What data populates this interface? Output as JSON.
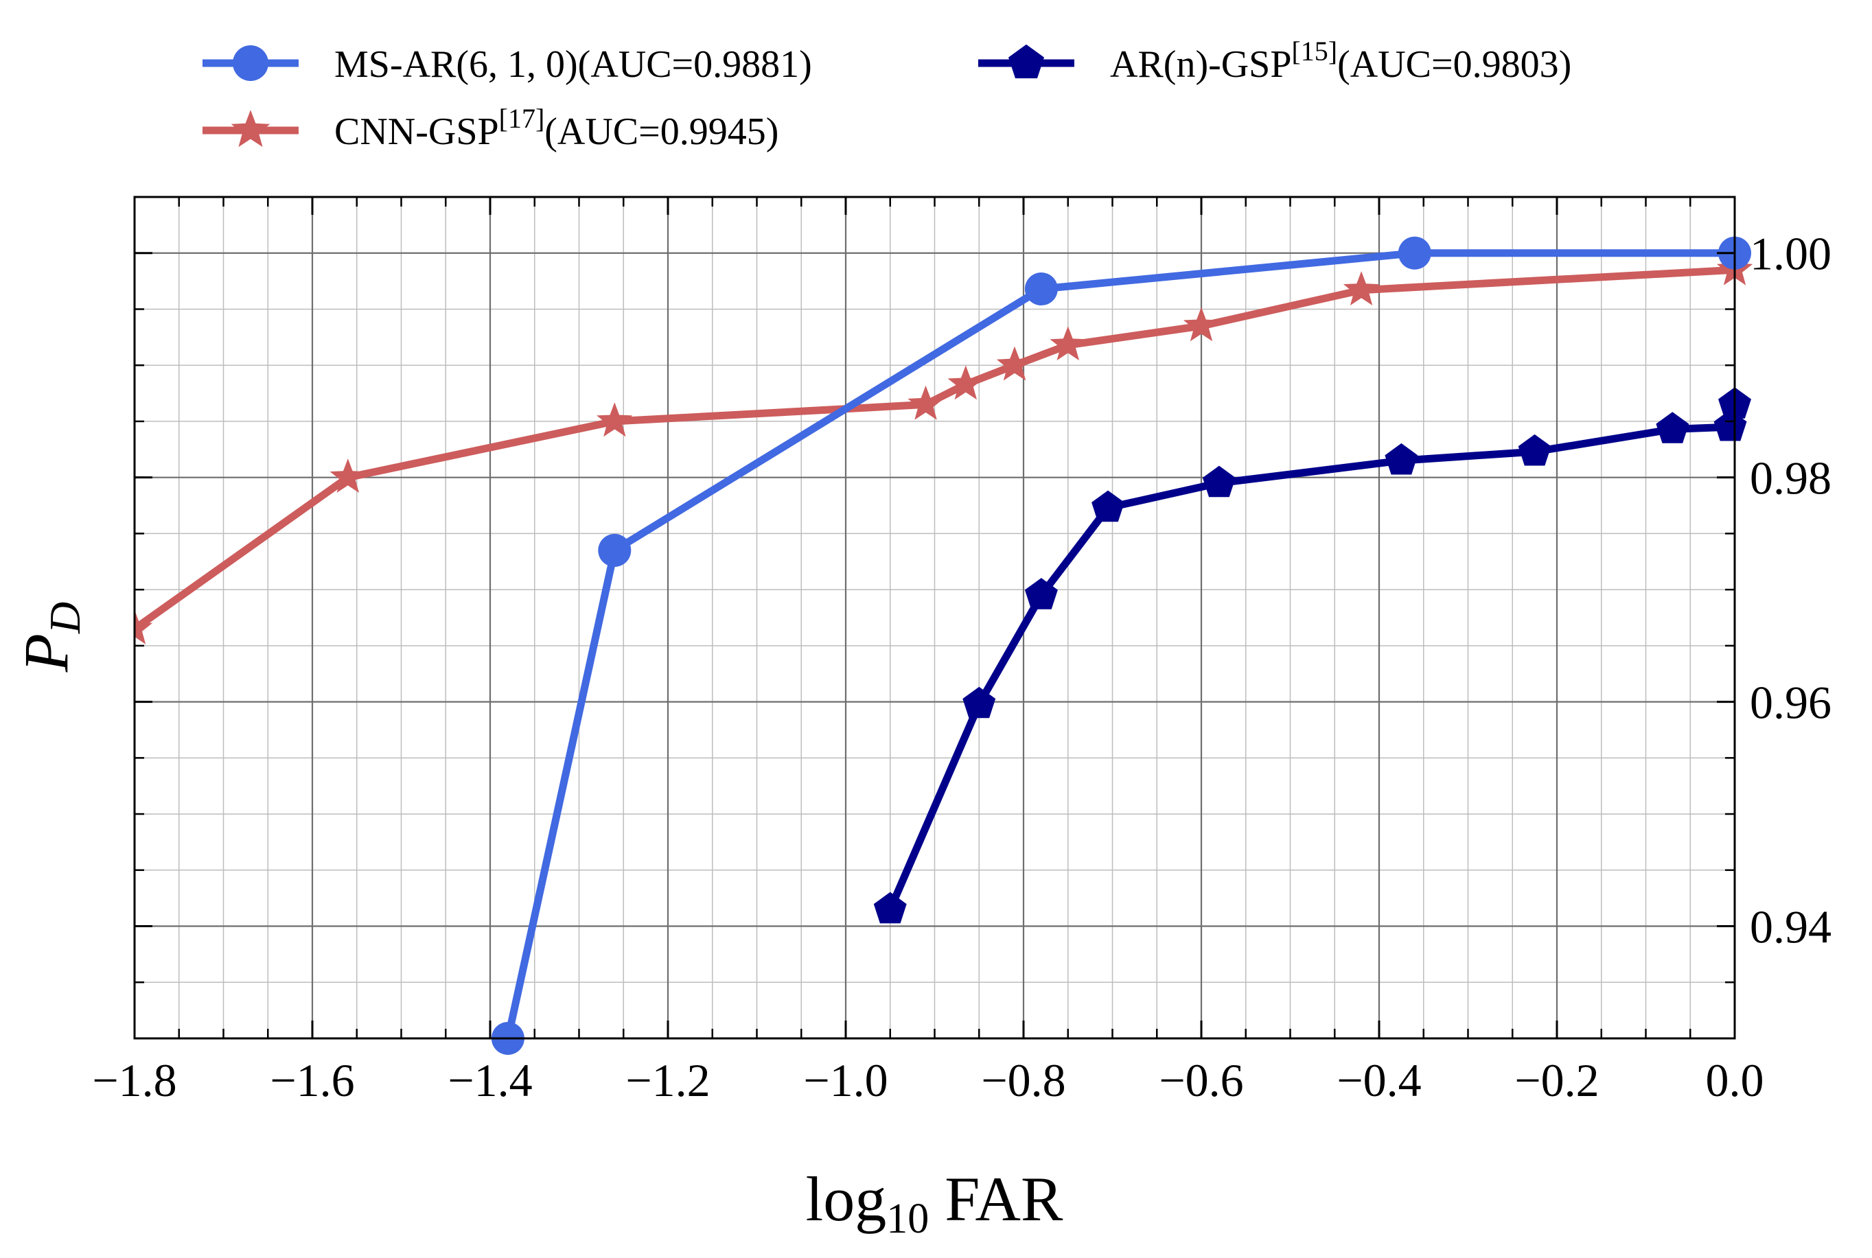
{
  "chart_data": {
    "type": "line",
    "xlabel": {
      "base": "log",
      "sub": "10",
      "rest": " FAR"
    },
    "ylabel": {
      "main": "P",
      "sub": "D"
    },
    "xlim": [
      -1.8,
      0.0
    ],
    "ylim": [
      0.93,
      1.005
    ],
    "x_ticks": [
      -1.8,
      -1.6,
      -1.4,
      -1.2,
      -1.0,
      -0.8,
      -0.6,
      -0.4,
      -0.2,
      0.0
    ],
    "x_tick_labels": [
      "−1.8",
      "−1.6",
      "−1.4",
      "−1.2",
      "−1.0",
      "−0.8",
      "−0.6",
      "−0.4",
      "−0.2",
      "0.0"
    ],
    "y_ticks": [
      0.94,
      0.96,
      0.98,
      1.0
    ],
    "y_tick_labels": [
      "0.94",
      "0.96",
      "0.98",
      "1.00"
    ],
    "y_axis_side": "right",
    "grid": true,
    "legend_position": "top",
    "series": [
      {
        "name": "MS-AR(6,1,0)(AUC=0.9881)",
        "legend": {
          "main": "MS-AR(6, 1, 0)(AUC=0.9881)",
          "sup": "",
          "tail": ""
        },
        "color": "#4169E1",
        "marker": "circle",
        "x": [
          -1.38,
          -1.26,
          -0.78,
          -0.36,
          0.0
        ],
        "y": [
          0.93,
          0.9735,
          0.9968,
          1.0,
          1.0
        ]
      },
      {
        "name": "CNN-GSP[17](AUC=0.9945)",
        "legend": {
          "main": "CNN-GSP",
          "sup": "[17]",
          "tail": "(AUC=0.9945)"
        },
        "color": "#CD5C5C",
        "marker": "star",
        "x": [
          -1.8,
          -1.56,
          -1.26,
          -0.91,
          -0.865,
          -0.81,
          -0.75,
          -0.6,
          -0.42,
          0.0
        ],
        "y": [
          0.9665,
          0.98,
          0.985,
          0.9865,
          0.9883,
          0.99,
          0.9918,
          0.9935,
          0.9967,
          0.9985
        ]
      },
      {
        "name": "AR(n)-GSP[15](AUC=0.9803)",
        "legend": {
          "main": "AR(n)-GSP",
          "sup": "[15]",
          "tail": "(AUC=0.9803)"
        },
        "color": "#00008B",
        "marker": "pentagon",
        "x": [
          -0.95,
          -0.85,
          -0.78,
          -0.705,
          -0.58,
          -0.375,
          -0.225,
          -0.07,
          -0.005,
          0.0
        ],
        "y": [
          0.9415,
          0.9598,
          0.9695,
          0.9773,
          0.9795,
          0.9815,
          0.9823,
          0.9843,
          0.9845,
          0.9865
        ]
      }
    ]
  }
}
